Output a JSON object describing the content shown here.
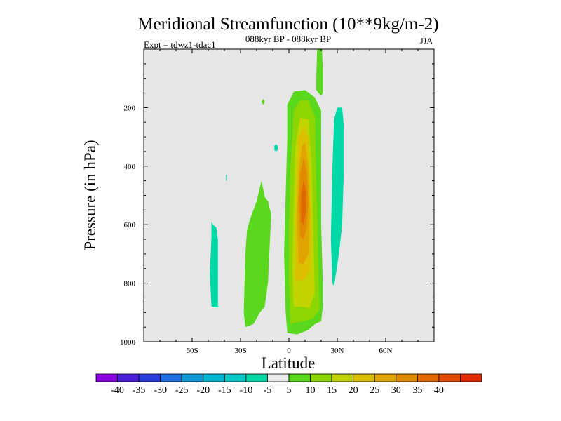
{
  "chart_data": {
    "type": "contour",
    "title": "Meridional Streamfunction (10**9kg/m-2)",
    "subtitle": "088kyr BP - 088kyr BP",
    "experiment": "Expt = tdwz1-tdac1",
    "season": "JJA",
    "xlabel": "Latitude",
    "ylabel": "Pressure (in hPa)",
    "xlim": [
      -90,
      90
    ],
    "ylim": [
      1000,
      0
    ],
    "y_reversed": true,
    "grid": false,
    "background_color": "#e6e6e6",
    "xticks": [
      {
        "value": -60,
        "label": "60S"
      },
      {
        "value": -30,
        "label": "30S"
      },
      {
        "value": 0,
        "label": "0"
      },
      {
        "value": 30,
        "label": "30N"
      },
      {
        "value": 60,
        "label": "60N"
      }
    ],
    "yticks": [
      {
        "value": 200,
        "label": "200"
      },
      {
        "value": 400,
        "label": "400"
      },
      {
        "value": 600,
        "label": "600"
      },
      {
        "value": 800,
        "label": "800"
      },
      {
        "value": 1000,
        "label": "1000"
      }
    ],
    "colorbar": {
      "colors": [
        "#8b00e0",
        "#4b1fd6",
        "#2b3cdd",
        "#1e6fe0",
        "#0f97d8",
        "#00b5d2",
        "#00c9c8",
        "#00d8a8",
        "#ececec",
        "#5ad81e",
        "#8ed600",
        "#c2d400",
        "#dcc000",
        "#e0a400",
        "#e08a00",
        "#e06a00",
        "#e04a00",
        "#e02a00"
      ],
      "labels": [
        "-40",
        "-35",
        "-30",
        "-25",
        "-20",
        "-15",
        "-10",
        "-5",
        "5",
        "10",
        "15",
        "20",
        "25",
        "30",
        "35",
        "40"
      ]
    },
    "regions": [
      {
        "name": "main-5",
        "color": "#5ad81e",
        "points": [
          [
            -1,
            970
          ],
          [
            -2,
            900
          ],
          [
            -3,
            700
          ],
          [
            -2,
            500
          ],
          [
            -1,
            300
          ],
          [
            -1,
            190
          ],
          [
            3,
            145
          ],
          [
            10,
            140
          ],
          [
            16,
            165
          ],
          [
            20,
            210
          ],
          [
            20,
            400
          ],
          [
            20,
            600
          ],
          [
            21,
            800
          ],
          [
            21,
            880
          ],
          [
            20,
            930
          ],
          [
            16,
            940
          ],
          [
            12,
            960
          ],
          [
            5,
            975
          ]
        ]
      },
      {
        "name": "main-10",
        "color": "#8ed600",
        "points": [
          [
            1,
            940
          ],
          [
            0,
            800
          ],
          [
            0,
            600
          ],
          [
            1,
            400
          ],
          [
            3,
            210
          ],
          [
            7,
            175
          ],
          [
            12,
            175
          ],
          [
            16,
            230
          ],
          [
            17,
            450
          ],
          [
            18,
            700
          ],
          [
            19,
            890
          ],
          [
            15,
            920
          ],
          [
            9,
            930
          ],
          [
            4,
            935
          ]
        ]
      },
      {
        "name": "main-15",
        "color": "#c2d400",
        "points": [
          [
            3,
            880
          ],
          [
            2,
            760
          ],
          [
            3,
            530
          ],
          [
            4,
            330
          ],
          [
            7,
            235
          ],
          [
            12,
            240
          ],
          [
            14,
            380
          ],
          [
            15,
            600
          ],
          [
            16,
            830
          ],
          [
            13,
            885
          ],
          [
            8,
            880
          ]
        ]
      },
      {
        "name": "main-20",
        "color": "#dcc000",
        "points": [
          [
            4,
            790
          ],
          [
            4,
            640
          ],
          [
            5,
            450
          ],
          [
            6,
            300
          ],
          [
            9,
            265
          ],
          [
            12,
            300
          ],
          [
            13,
            470
          ],
          [
            14,
            640
          ],
          [
            13,
            760
          ],
          [
            9,
            790
          ]
        ]
      },
      {
        "name": "main-25",
        "color": "#e0a400",
        "points": [
          [
            6,
            730
          ],
          [
            5,
            580
          ],
          [
            6,
            430
          ],
          [
            8,
            330
          ],
          [
            10,
            320
          ],
          [
            12,
            400
          ],
          [
            13,
            560
          ],
          [
            12,
            700
          ],
          [
            9,
            735
          ]
        ]
      },
      {
        "name": "main-30",
        "color": "#e08a00",
        "points": [
          [
            7,
            640
          ],
          [
            6,
            520
          ],
          [
            7,
            430
          ],
          [
            9,
            370
          ],
          [
            11,
            420
          ],
          [
            12,
            520
          ],
          [
            11,
            610
          ],
          [
            9,
            650
          ]
        ]
      },
      {
        "name": "main-35",
        "color": "#e06a00",
        "points": [
          [
            7.5,
            590
          ],
          [
            7.5,
            500
          ],
          [
            9,
            450
          ],
          [
            10.5,
            480
          ],
          [
            10.5,
            560
          ],
          [
            9,
            600
          ]
        ]
      },
      {
        "name": "nh-jet-5",
        "color": "#5ad81e",
        "points": [
          [
            17,
            140
          ],
          [
            17,
            90
          ],
          [
            17.5,
            0
          ],
          [
            20.5,
            0
          ],
          [
            21,
            70
          ],
          [
            21,
            150
          ],
          [
            20,
            160
          ]
        ]
      },
      {
        "name": "sh-cell-5",
        "color": "#5ad81e",
        "points": [
          [
            -27,
            950
          ],
          [
            -28,
            900
          ],
          [
            -27,
            700
          ],
          [
            -26,
            620
          ],
          [
            -24,
            580
          ],
          [
            -20,
            520
          ],
          [
            -17,
            450
          ],
          [
            -15,
            505
          ],
          [
            -13,
            520
          ],
          [
            -11,
            565
          ],
          [
            -13,
            800
          ],
          [
            -15,
            880
          ],
          [
            -18,
            900
          ],
          [
            -22,
            940
          ]
        ]
      },
      {
        "name": "nh-cell-neg5",
        "color": "#00d8a8",
        "points": [
          [
            27,
            800
          ],
          [
            26,
            650
          ],
          [
            27,
            400
          ],
          [
            28,
            240
          ],
          [
            30,
            200
          ],
          [
            33,
            200
          ],
          [
            34,
            260
          ],
          [
            34,
            420
          ],
          [
            33,
            600
          ],
          [
            31,
            700
          ],
          [
            28,
            810
          ]
        ]
      },
      {
        "name": "sh-far-neg5",
        "color": "#00d8a8",
        "points": [
          [
            -48,
            880
          ],
          [
            -49,
            770
          ],
          [
            -48,
            640
          ],
          [
            -48,
            590
          ],
          [
            -47,
            600
          ],
          [
            -45,
            610
          ],
          [
            -44,
            650
          ],
          [
            -44,
            880
          ]
        ]
      },
      {
        "name": "blob-a",
        "color": "#5ad81e",
        "points": [
          [
            -17,
            180
          ],
          [
            -16,
            170
          ],
          [
            -15,
            180
          ],
          [
            -16,
            190
          ]
        ]
      },
      {
        "name": "blob-b",
        "color": "#00d8a8",
        "points": [
          [
            -9,
            330
          ],
          [
            -8,
            325
          ],
          [
            -7,
            330
          ],
          [
            -7,
            345
          ],
          [
            -8,
            350
          ],
          [
            -9,
            345
          ]
        ]
      },
      {
        "name": "blob-c",
        "color": "#00d8a8",
        "points": [
          [
            -39,
            430
          ],
          [
            -38.5,
            430
          ],
          [
            -38.5,
            450
          ],
          [
            -39,
            450
          ]
        ]
      }
    ]
  }
}
